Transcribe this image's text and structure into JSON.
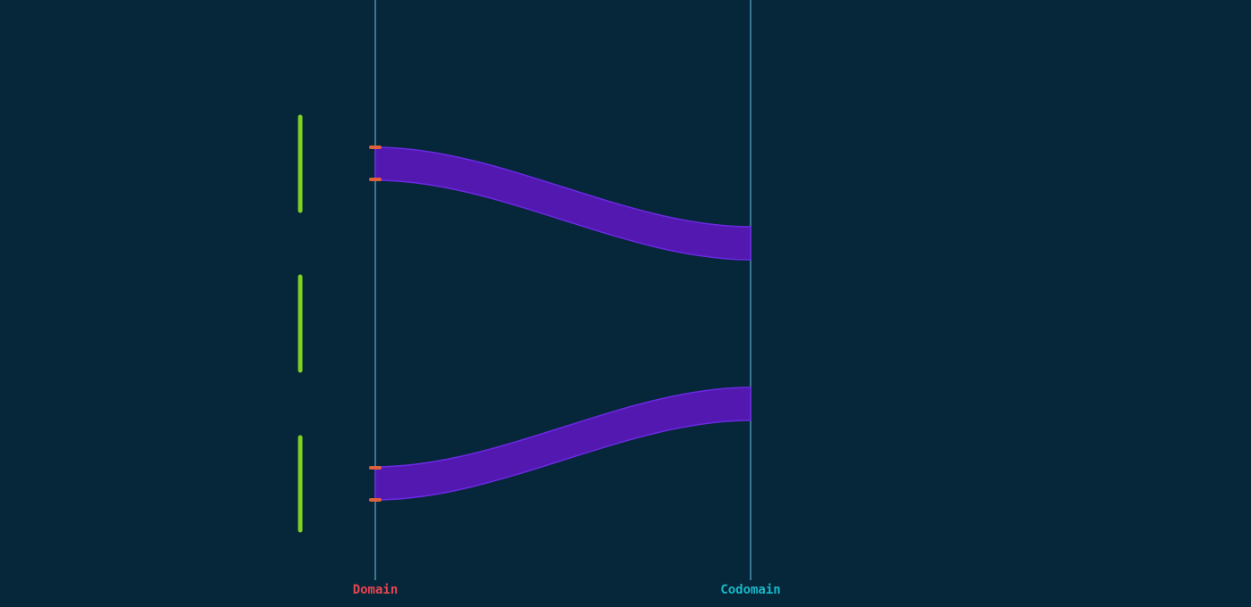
{
  "axes": {
    "domain_label": "Domain",
    "codomain_label": "Codomain"
  },
  "colors": {
    "background": "#06263a",
    "axis_line": "#4f8fb0",
    "domain_label": "#e8454f",
    "codomain_label": "#19b8c8",
    "ribbon_fill": "#5218b0",
    "ribbon_stroke": "#6a2ae0",
    "segment": "#7ed321",
    "tick": "#e0603a"
  }
}
